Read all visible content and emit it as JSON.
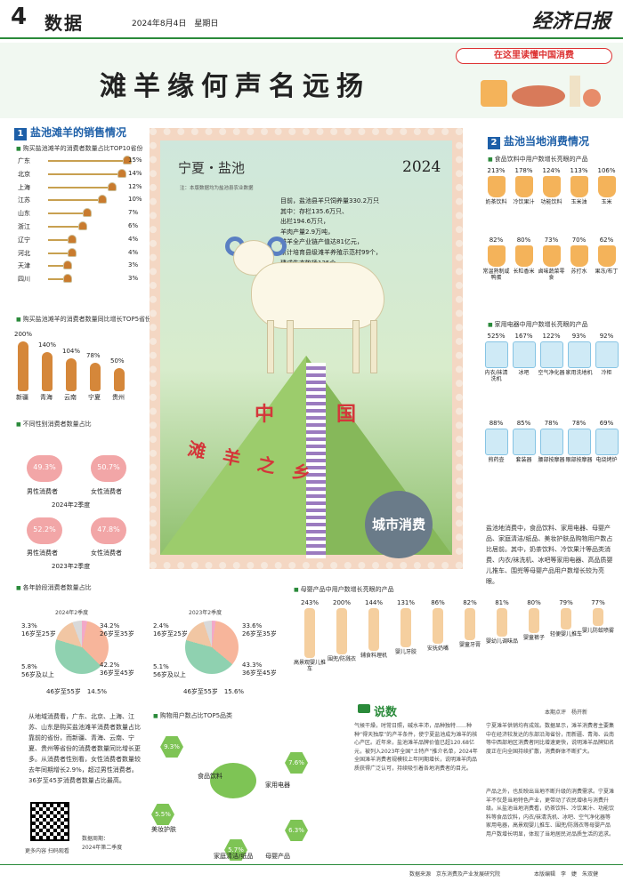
{
  "header": {
    "page_number": "4",
    "section": "数据",
    "date": "2024年8月4日　星期日",
    "masthead": "经济日报"
  },
  "banner": {
    "title": "滩羊缘何声名远扬",
    "promo": "在这里读懂中国消费"
  },
  "left": {
    "section_title": "盐池滩羊的销售情况",
    "top10_title": "购买盐池滩羊的消费者数量占比TOP10省份",
    "top10": [
      {
        "name": "广东",
        "pct": "15%",
        "value": 15
      },
      {
        "name": "北京",
        "pct": "14%",
        "value": 14
      },
      {
        "name": "上海",
        "pct": "12%",
        "value": 12
      },
      {
        "name": "江苏",
        "pct": "10%",
        "value": 10
      },
      {
        "name": "山东",
        "pct": "7%",
        "value": 7
      },
      {
        "name": "浙江",
        "pct": "6%",
        "value": 6
      },
      {
        "name": "辽宁",
        "pct": "4%",
        "value": 4
      },
      {
        "name": "河北",
        "pct": "4%",
        "value": 4
      },
      {
        "name": "天津",
        "pct": "3%",
        "value": 3
      },
      {
        "name": "四川",
        "pct": "3%",
        "value": 3
      }
    ],
    "growth_title": "购买盐池滩羊的消费者数量同比增长TOP5省份",
    "growth": [
      {
        "name": "新疆",
        "pct": "200%",
        "value": 200
      },
      {
        "name": "青海",
        "pct": "140%",
        "value": 140
      },
      {
        "name": "云南",
        "pct": "104%",
        "value": 104
      },
      {
        "name": "宁夏",
        "pct": "78%",
        "value": 78
      },
      {
        "name": "贵州",
        "pct": "50%",
        "value": 50
      }
    ],
    "gender_title": "不同性别消费者数量占比",
    "gender_2024": {
      "male": "49.3%",
      "female": "50.7%",
      "label": "2024年2季度"
    },
    "gender_2023": {
      "male": "52.2%",
      "female": "47.8%",
      "label": "2023年2季度"
    },
    "male_label": "男性消费者",
    "female_label": "女性消费者"
  },
  "stamp": {
    "place": "宁夏・盐池",
    "year": "2024",
    "note": "注：本版数据均为盐池县农业数据",
    "stats": [
      "目前，盐池县羊只饲养量330.2万只",
      "其中：存栏135.6万只、",
      "出栏194.6万只，",
      "羊肉产量2.9万吨，",
      "滩羊全产业链产值达81亿元，",
      "累计培育县级滩羊养殖示范村99个，",
      "建成生态牧场125个，",
      "规模养殖园区326个。"
    ],
    "char_zhong": "中",
    "char_guo": "国",
    "slogan": "滩羊之乡",
    "seal": "城市消费"
  },
  "right": {
    "section_title": "盐池当地消费情况",
    "food_title": "食品饮料中用户数增长亮眼的产品",
    "food": [
      {
        "pct": "213%",
        "name": "奶茶饮料"
      },
      {
        "pct": "178%",
        "name": "冷饮果汁"
      },
      {
        "pct": "124%",
        "name": "功能饮料"
      },
      {
        "pct": "113%",
        "name": "玉米油"
      },
      {
        "pct": "106%",
        "name": "玉米"
      },
      {
        "pct": "82%",
        "name": "常温熟制咸鸭蛋"
      },
      {
        "pct": "80%",
        "name": "长粒香米"
      },
      {
        "pct": "73%",
        "name": "卤味蔬菜零食"
      },
      {
        "pct": "70%",
        "name": "苏打水"
      },
      {
        "pct": "62%",
        "name": "果冻/布丁"
      }
    ],
    "appliance_title": "家用电器中用户数增长亮眼的产品",
    "appliance": [
      {
        "pct": "525%",
        "name": "内衣/袜清洗机"
      },
      {
        "pct": "167%",
        "name": "冰吧"
      },
      {
        "pct": "122%",
        "name": "空气净化器"
      },
      {
        "pct": "93%",
        "name": "家用洗地机"
      },
      {
        "pct": "92%",
        "name": "冷柜"
      },
      {
        "pct": "88%",
        "name": "煎药壶"
      },
      {
        "pct": "85%",
        "name": "套装器"
      },
      {
        "pct": "78%",
        "name": "腰部按摩器"
      },
      {
        "pct": "78%",
        "name": "眼部按摩器"
      },
      {
        "pct": "69%",
        "name": "电烧烤炉"
      }
    ],
    "summary": "盐池地消费中，食品饮料、家用电器、母婴产品、家庭清洁/纸品、美妆护肤品购物用户数占比居前。其中，奶茶饮料、冷饮果汁等品类消费、内衣/袜洗机、冰吧等家用电器、高品质婴儿推车、围兜等母婴产品用户数增长较为亮眼。"
  },
  "age": {
    "title": "各年龄段消费者数量占比",
    "y2024": {
      "label": "2024年2季度",
      "a": "3.3%\n16岁至25岁",
      "b": "34.2%\n26岁至35岁",
      "c": "5.8%\n56岁及以上",
      "d": "42.2%\n36岁至45岁",
      "e": "46岁至55岁　14.5%"
    },
    "y2023": {
      "label": "2023年2季度",
      "a": "2.4%\n16岁至25岁",
      "b": "33.6%\n26岁至35岁",
      "c": "5.1%\n56岁及以上",
      "d": "43.3%\n36岁至45岁",
      "e": "46岁至55岁　15.6%"
    }
  },
  "baby": {
    "title": "母婴产品中用户数增长亮眼的产品",
    "items": [
      {
        "pct": "243%",
        "name": "高景观婴儿推车"
      },
      {
        "pct": "200%",
        "name": "围兜/防溅衣"
      },
      {
        "pct": "144%",
        "name": "辅食料理机"
      },
      {
        "pct": "131%",
        "name": "婴儿牙胶"
      },
      {
        "pct": "86%",
        "name": "安抚奶嘴"
      },
      {
        "pct": "82%",
        "name": "婴童牙膏"
      },
      {
        "pct": "81%",
        "name": "婴幼儿调味品"
      },
      {
        "pct": "80%",
        "name": "婴童裤子"
      },
      {
        "pct": "79%",
        "name": "轻便婴儿推车"
      },
      {
        "pct": "77%",
        "name": "婴儿防蚊喷雾"
      }
    ]
  },
  "top5": {
    "title": "购物用户数占比TOP5品类",
    "items": [
      {
        "pct": "9.3%",
        "name": "食品饮料"
      },
      {
        "pct": "7.6%",
        "name": "家用电器"
      },
      {
        "pct": "6.3%",
        "name": "母婴产品"
      },
      {
        "pct": "5.7%",
        "name": "家庭清洁/纸品"
      },
      {
        "pct": "5.5%",
        "name": "美妆护肤"
      }
    ]
  },
  "left_text": "从地域消费看，广东、北京、上海、江苏、山东是购买盐池滩羊消费者数量占比靠前的省份，而新疆、青海、云南、宁夏、贵州等省份的消费者数量同比增长更多。从消费者性别看，女性消费者数量较去年同期增长2.9%，超过男性消费者。36岁至45岁消费者数量占比最高。",
  "qr": {
    "caption": "更多内容 扫码观看",
    "period_label": "数据周期：",
    "period": "2024年第二季度"
  },
  "comment": {
    "title": "说数",
    "author": "本期点评　杨开新",
    "p1": "气候干燥，时常日照，碱水丰沛，品种独特……种种“得天独厚”的产羊条件，使宁夏盐池成为滩羊的核心产区。近年来，盐池滩羊品牌价值已超120.68亿元，被列入2023年全国“土特产”推介名单，2024年全国滩羊消费者规模较上年同期增长，说明滩羊肉品质获得广泛认可，持续吸引着各地消费者的目光。",
    "p2": "宁夏滩羊供销均有成效。数据显示，滩羊消费者主要集中在经济较发达的东部沿海省份，而新疆、青海、云南等中西部地区消费者同比增速更快，说明滩羊品牌知名度正在向全国持续扩散，消费群体不断扩大。",
    "p3": "产品之外，也反映出当地不断升级的消费需求。宁夏滩羊不仅是当地特色产业，更带动了农民增收与消费升级。从盐池当地消费看，奶茶饮料、冷饮果汁、功能饮料等食品饮料，内衣/袜清洗机、冰吧、空气净化器等家用电器，高景观婴儿推车、围兜/防溅衣等母婴产品用户数增长明显，体现了当地居民对品质生活的追求。"
  },
  "footer": {
    "source": "数据来源　京东消费及产业发展研究院",
    "credits": "本版编辑　李　婕　朱双健"
  }
}
